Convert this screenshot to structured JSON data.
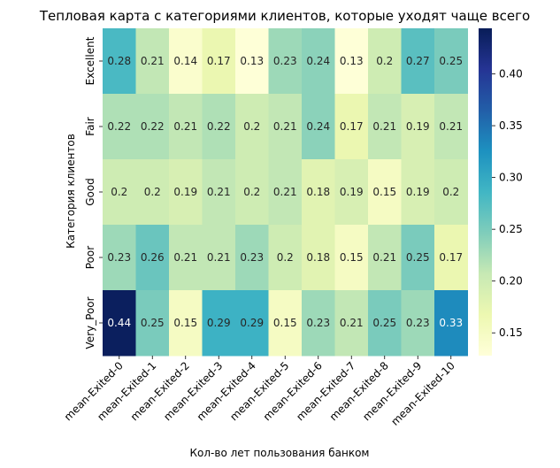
{
  "chart_data": {
    "type": "heatmap",
    "title": "Тепловая карта с категориями клиентов, которые уходят чаще всего",
    "xlabel": "Кол-во лет пользования банком",
    "ylabel": "Категория клиентов",
    "x_categories": [
      "mean-Exited-0",
      "mean-Exited-1",
      "mean-Exited-2",
      "mean-Exited-3",
      "mean-Exited-4",
      "mean-Exited-5",
      "mean-Exited-6",
      "mean-Exited-7",
      "mean-Exited-8",
      "mean-Exited-9",
      "mean-Exited-10"
    ],
    "y_categories": [
      "Excellent",
      "Fair",
      "Good",
      "Poor",
      "Very_Poor"
    ],
    "values": [
      [
        0.28,
        0.21,
        0.14,
        0.17,
        0.13,
        0.23,
        0.24,
        0.13,
        0.2,
        0.27,
        0.25
      ],
      [
        0.22,
        0.22,
        0.21,
        0.22,
        0.2,
        0.21,
        0.24,
        0.17,
        0.21,
        0.19,
        0.21
      ],
      [
        0.2,
        0.2,
        0.19,
        0.21,
        0.2,
        0.21,
        0.18,
        0.19,
        0.15,
        0.19,
        0.2
      ],
      [
        0.23,
        0.26,
        0.21,
        0.21,
        0.23,
        0.2,
        0.18,
        0.15,
        0.21,
        0.25,
        0.17
      ],
      [
        0.44,
        0.25,
        0.15,
        0.29,
        0.29,
        0.15,
        0.23,
        0.21,
        0.25,
        0.23,
        0.33
      ]
    ],
    "colormap": "YlGnBu",
    "vmin": 0.128,
    "vmax": 0.444,
    "colorbar_ticks": [
      "0.15",
      "0.20",
      "0.25",
      "0.30",
      "0.35",
      "0.40"
    ],
    "colorbar_tick_values": [
      0.15,
      0.2,
      0.25,
      0.3,
      0.35,
      0.4
    ]
  }
}
